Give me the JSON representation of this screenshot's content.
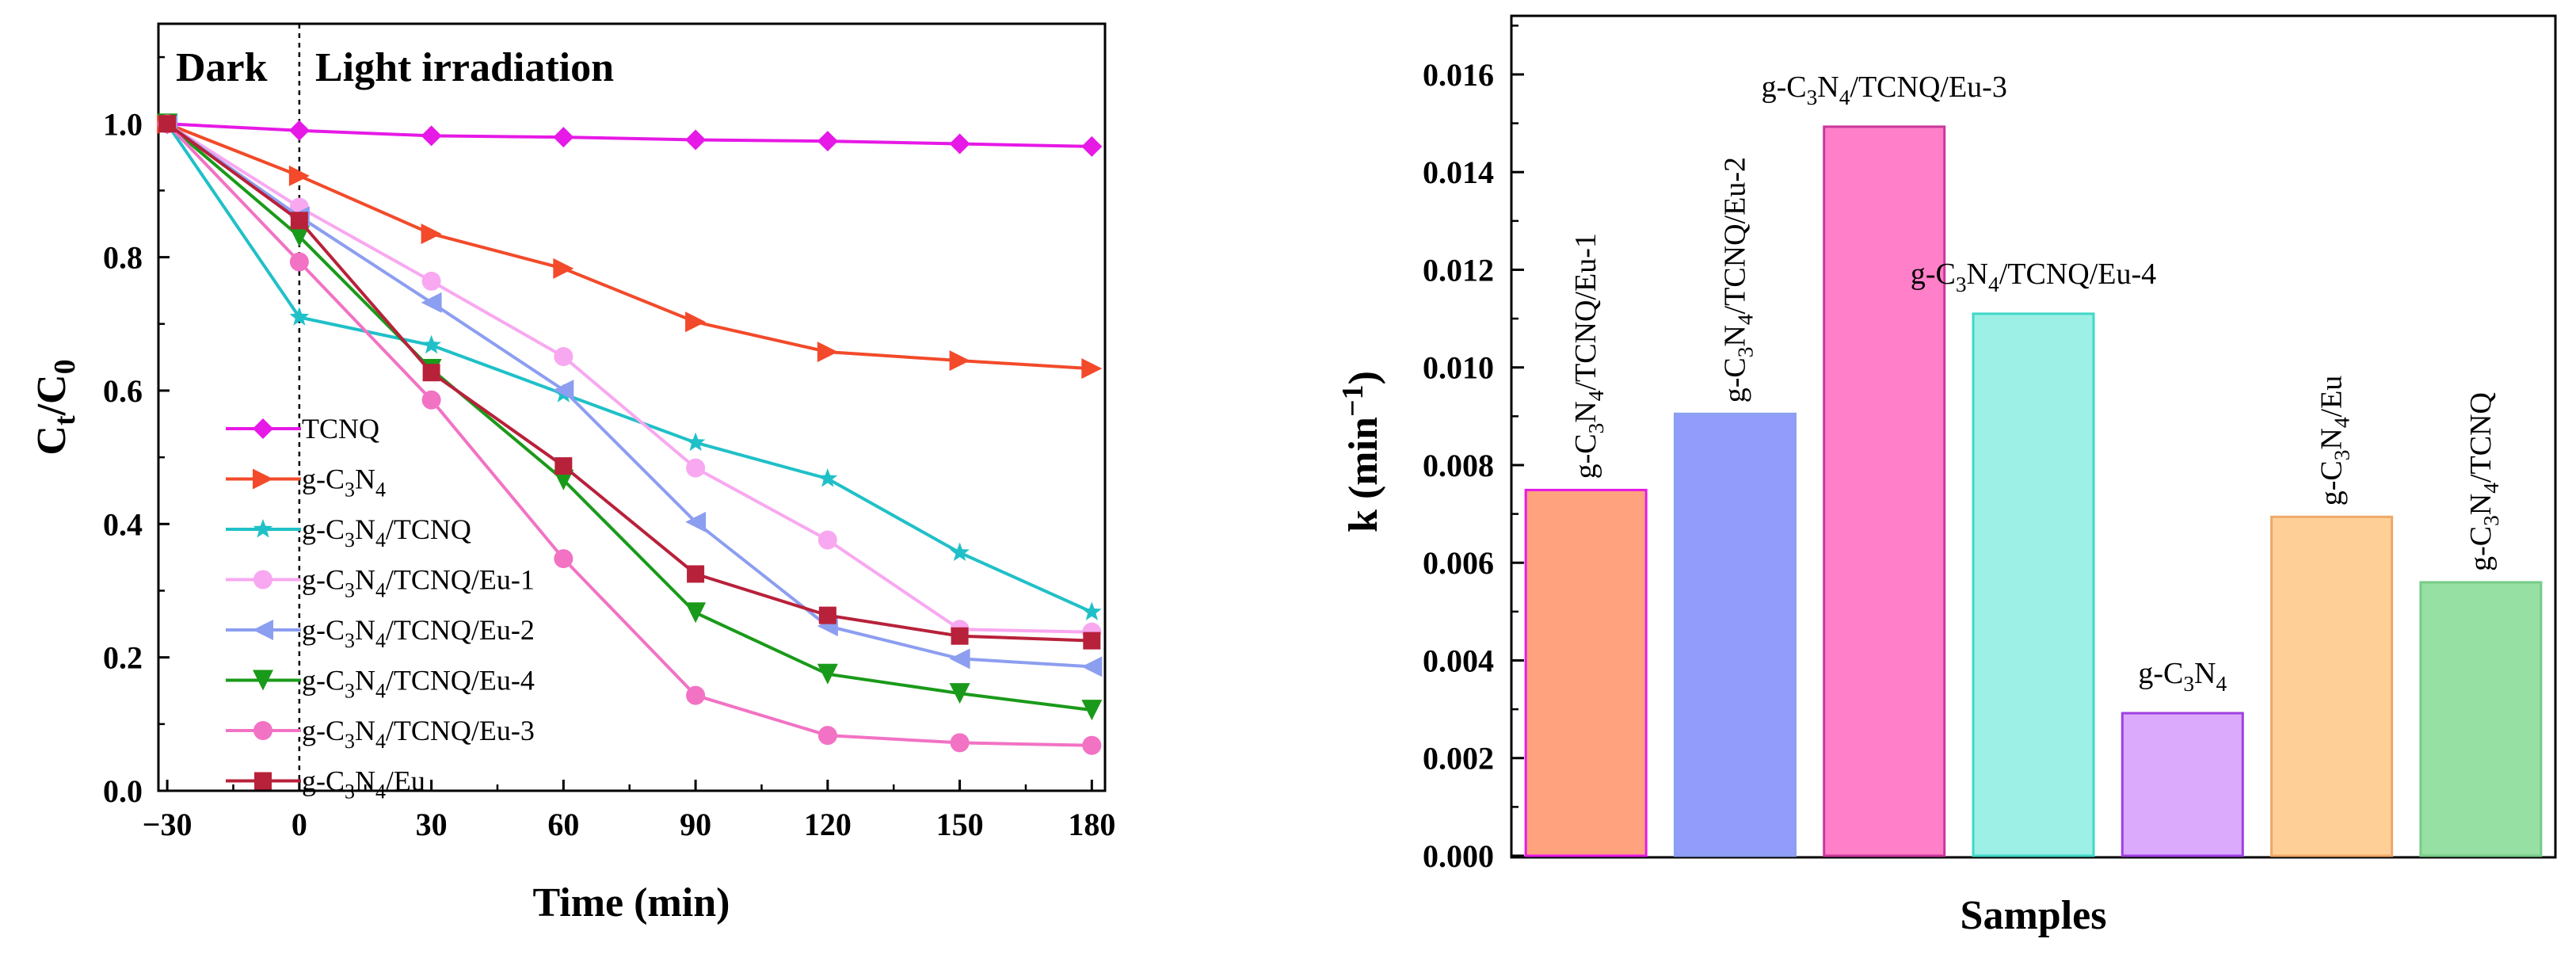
{
  "chart_data": [
    {
      "type": "line",
      "xlabel": "Time (min)",
      "ylabel_main": "C",
      "ylabel_sub1": "t",
      "ylabel_sep": "/C",
      "ylabel_sub2": "0",
      "xlim": [
        -32,
        183
      ],
      "ylim": [
        0.0,
        1.15
      ],
      "x_ticks": [
        -30,
        0,
        30,
        60,
        90,
        120,
        150,
        180
      ],
      "x_tick_labels": [
        "−30",
        "0",
        "30",
        "60",
        "90",
        "120",
        "150",
        "180"
      ],
      "y_ticks": [
        0.0,
        0.2,
        0.4,
        0.6,
        0.8,
        1.0
      ],
      "y_tick_labels": [
        "0.0",
        "0.2",
        "0.4",
        "0.6",
        "0.8",
        "1.0"
      ],
      "annotations": {
        "dark": "Dark",
        "light": "Light irradiation"
      },
      "x": [
        -30,
        0,
        30,
        60,
        90,
        120,
        150,
        180
      ],
      "series": [
        {
          "legend": [
            "TCNQ"
          ],
          "color": "#e619e6",
          "marker": "diamond",
          "values": [
            1.0,
            0.99,
            0.982,
            0.98,
            0.976,
            0.974,
            0.97,
            0.966
          ]
        },
        {
          "legend": [
            "g-C",
            "3",
            "N",
            "4"
          ],
          "color": "#f24a2a",
          "marker": "triangle-right",
          "values": [
            1.0,
            0.922,
            0.835,
            0.783,
            0.703,
            0.658,
            0.645,
            0.633
          ]
        },
        {
          "legend": [
            "g-C",
            "3",
            "N",
            "4",
            "/TCNQ"
          ],
          "color": "#20c0c8",
          "marker": "star",
          "values": [
            1.0,
            0.71,
            0.668,
            0.595,
            0.522,
            0.468,
            0.357,
            0.268
          ]
        },
        {
          "legend": [
            "g-C",
            "3",
            "N",
            "4",
            "/TCNQ/Eu-1"
          ],
          "color": "#f8a8f0",
          "marker": "circle",
          "values": [
            1.0,
            0.875,
            0.764,
            0.651,
            0.484,
            0.376,
            0.242,
            0.238
          ]
        },
        {
          "legend": [
            "g-C",
            "3",
            "N",
            "4",
            "/TCNQ/Eu-2"
          ],
          "color": "#8c9ef0",
          "marker": "triangle-left",
          "values": [
            1.0,
            0.861,
            0.732,
            0.601,
            0.403,
            0.247,
            0.198,
            0.186
          ]
        },
        {
          "legend": [
            "g-C",
            "3",
            "N",
            "4",
            "/TCNQ/Eu-4"
          ],
          "color": "#1a9a1a",
          "marker": "triangle-down",
          "values": [
            1.0,
            0.831,
            0.632,
            0.466,
            0.267,
            0.175,
            0.146,
            0.121
          ]
        },
        {
          "legend": [
            "g-C",
            "3",
            "N",
            "4",
            "/TCNQ/Eu-3"
          ],
          "color": "#f272c4",
          "marker": "circle",
          "values": [
            1.0,
            0.793,
            0.586,
            0.348,
            0.143,
            0.083,
            0.072,
            0.068
          ]
        },
        {
          "legend": [
            "g-C",
            "3",
            "N",
            "4",
            "/Eu"
          ],
          "color": "#b8213a",
          "marker": "square",
          "values": [
            1.0,
            0.855,
            0.627,
            0.487,
            0.325,
            0.263,
            0.232,
            0.225
          ]
        }
      ]
    },
    {
      "type": "bar",
      "xlabel": "Samples",
      "ylabel_main": "k (min",
      "ylabel_sup": "−1",
      "ylabel_close": ")",
      "ylim": [
        0.0,
        0.0172
      ],
      "y_ticks": [
        0.0,
        0.002,
        0.004,
        0.006,
        0.008,
        0.01,
        0.012,
        0.014,
        0.016
      ],
      "y_tick_labels": [
        "0.000",
        "0.002",
        "0.004",
        "0.006",
        "0.008",
        "0.010",
        "0.012",
        "0.014",
        "0.016"
      ],
      "bars": [
        {
          "label": [
            "g-C",
            "3",
            "N",
            "4",
            "/TCNQ/Eu-1"
          ],
          "value": 0.00749,
          "fill": "#ffa27d",
          "stroke": "#e619e6",
          "orientation": "vertical"
        },
        {
          "label": [
            "g-C",
            "3",
            "N",
            "4",
            "/TCNQ/Eu-2"
          ],
          "value": 0.00905,
          "fill": "#919cfb",
          "stroke": "#8c9ef0",
          "orientation": "vertical"
        },
        {
          "label": [
            "g-C",
            "3",
            "N",
            "4",
            "/TCNQ/Eu-3"
          ],
          "value": 0.01493,
          "fill": "#ff7fc8",
          "stroke": "#c8389a",
          "orientation": "horizontal"
        },
        {
          "label": [
            "g-C",
            "3",
            "N",
            "4",
            "/TCNQ/Eu-4"
          ],
          "value": 0.0111,
          "fill": "#9cf0e6",
          "stroke": "#40d8c8",
          "orientation": "horizontal"
        },
        {
          "label": [
            "g-C",
            "3",
            "N",
            "4"
          ],
          "value": 0.00292,
          "fill": "#dcaafc",
          "stroke": "#a040e0",
          "orientation": "horizontal"
        },
        {
          "label": [
            "g-C",
            "3",
            "N",
            "4",
            "/Eu"
          ],
          "value": 0.00694,
          "fill": "#ffcf98",
          "stroke": "#f0a868",
          "orientation": "vertical"
        },
        {
          "label": [
            "g-C",
            "3",
            "N",
            "4",
            "/TCNQ"
          ],
          "value": 0.0056,
          "fill": "#96e0a4",
          "stroke": "#78cc88",
          "orientation": "vertical"
        }
      ]
    }
  ]
}
